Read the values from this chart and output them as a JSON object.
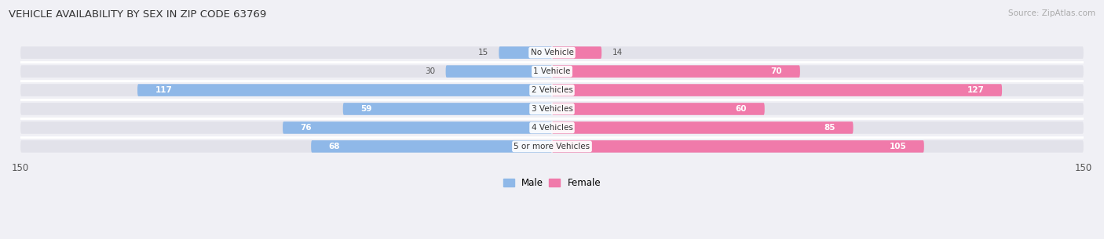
{
  "title": "VEHICLE AVAILABILITY BY SEX IN ZIP CODE 63769",
  "source": "Source: ZipAtlas.com",
  "categories": [
    "No Vehicle",
    "1 Vehicle",
    "2 Vehicles",
    "3 Vehicles",
    "4 Vehicles",
    "5 or more Vehicles"
  ],
  "male_values": [
    15,
    30,
    117,
    59,
    76,
    68
  ],
  "female_values": [
    14,
    70,
    127,
    60,
    85,
    105
  ],
  "male_color": "#8fb8e8",
  "female_color": "#f07aaa",
  "label_color_inside": "#ffffff",
  "label_color_outside": "#555555",
  "background_color": "#f0f0f5",
  "bar_background": "#e2e2ea",
  "axis_max": 150,
  "legend_male": "Male",
  "legend_female": "Female",
  "inside_threshold": 40
}
